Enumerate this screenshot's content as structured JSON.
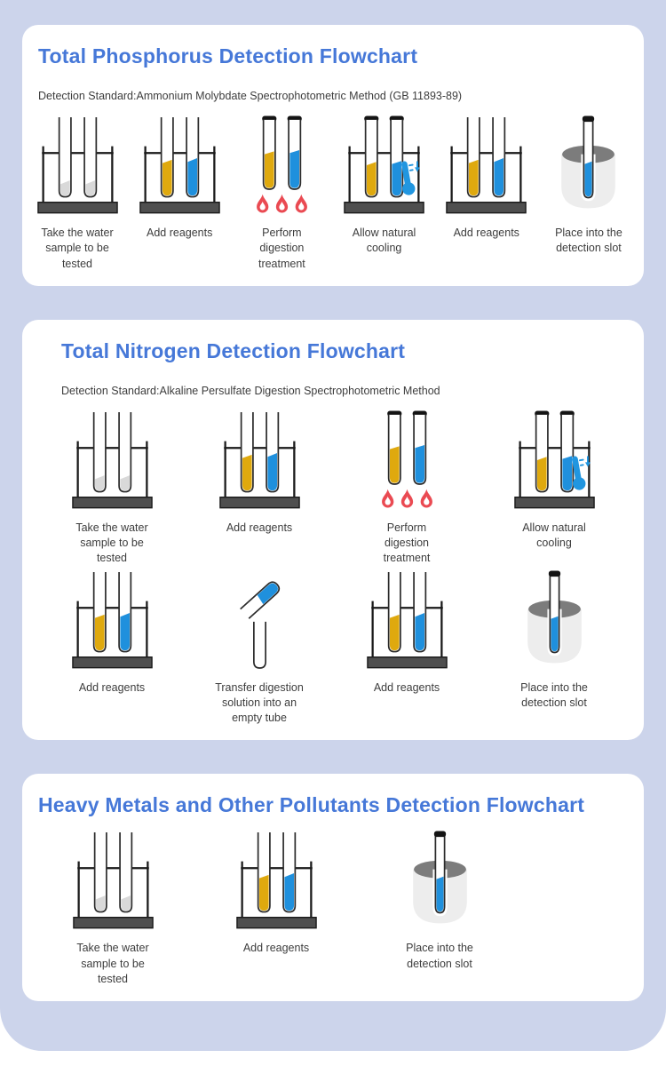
{
  "colors": {
    "panel_background": "#ccd4eb",
    "card_background": "#ffffff",
    "title_blue": "#4678d8",
    "text_dark": "#3d3d3d",
    "reagent_yellow": "#dfa90e",
    "reagent_blue": "#1f90dd",
    "liquid_gray": "#d9d9d9",
    "flame_red": "#ea4a52",
    "rack_base_gray": "#4f4f4f",
    "slot_cup_gray": "#ededed",
    "slot_rim_gray": "#7c7c7c",
    "thermometer_blue": "#2196e0",
    "cap_black": "#141414"
  },
  "sections": [
    {
      "title": "Total Phosphorus Detection Flowchart",
      "subtitle": "Detection Standard:Ammonium Molybdate Spectrophotometric Method (GB 11893-89)",
      "rows": [
        [
          {
            "icon": "tubes-sample",
            "label": "Take the water\nsample to be\ntested"
          },
          {
            "icon": "tubes-reagents",
            "label": "Add reagents"
          },
          {
            "icon": "tubes-digestion",
            "label": "Perform\ndigestion\ntreatment"
          },
          {
            "icon": "tubes-cooling",
            "label": "Allow natural\ncooling"
          },
          {
            "icon": "tubes-reagents",
            "label": "Add reagents"
          },
          {
            "icon": "detection-slot",
            "label": "Place into the\ndetection slot"
          }
        ]
      ]
    },
    {
      "title": "Total Nitrogen Detection Flowchart",
      "subtitle": "Detection Standard:Alkaline Persulfate Digestion Spectrophotometric Method",
      "rows": [
        [
          {
            "icon": "tubes-sample",
            "label": "Take the water\nsample to be\ntested"
          },
          {
            "icon": "tubes-reagents",
            "label": "Add reagents"
          },
          {
            "icon": "tubes-digestion",
            "label": "Perform\ndigestion\ntreatment"
          },
          {
            "icon": "tubes-cooling",
            "label": "Allow natural\ncooling"
          }
        ],
        [
          {
            "icon": "tubes-reagents",
            "label": "Add reagents"
          },
          {
            "icon": "transfer-tube",
            "label": "Transfer digestion\nsolution into an\nempty tube"
          },
          {
            "icon": "tubes-reagents",
            "label": "Add reagents"
          },
          {
            "icon": "detection-slot",
            "label": "Place into the\ndetection slot"
          }
        ]
      ]
    },
    {
      "title": "Heavy Metals and Other Pollutants Detection Flowchart",
      "rows": [
        [
          {
            "icon": "tubes-sample",
            "label": "Take the water\nsample to be\ntested"
          },
          {
            "icon": "tubes-reagents",
            "label": "Add reagents"
          },
          {
            "icon": "detection-slot",
            "label": "Place into the\ndetection slot"
          }
        ]
      ]
    }
  ]
}
